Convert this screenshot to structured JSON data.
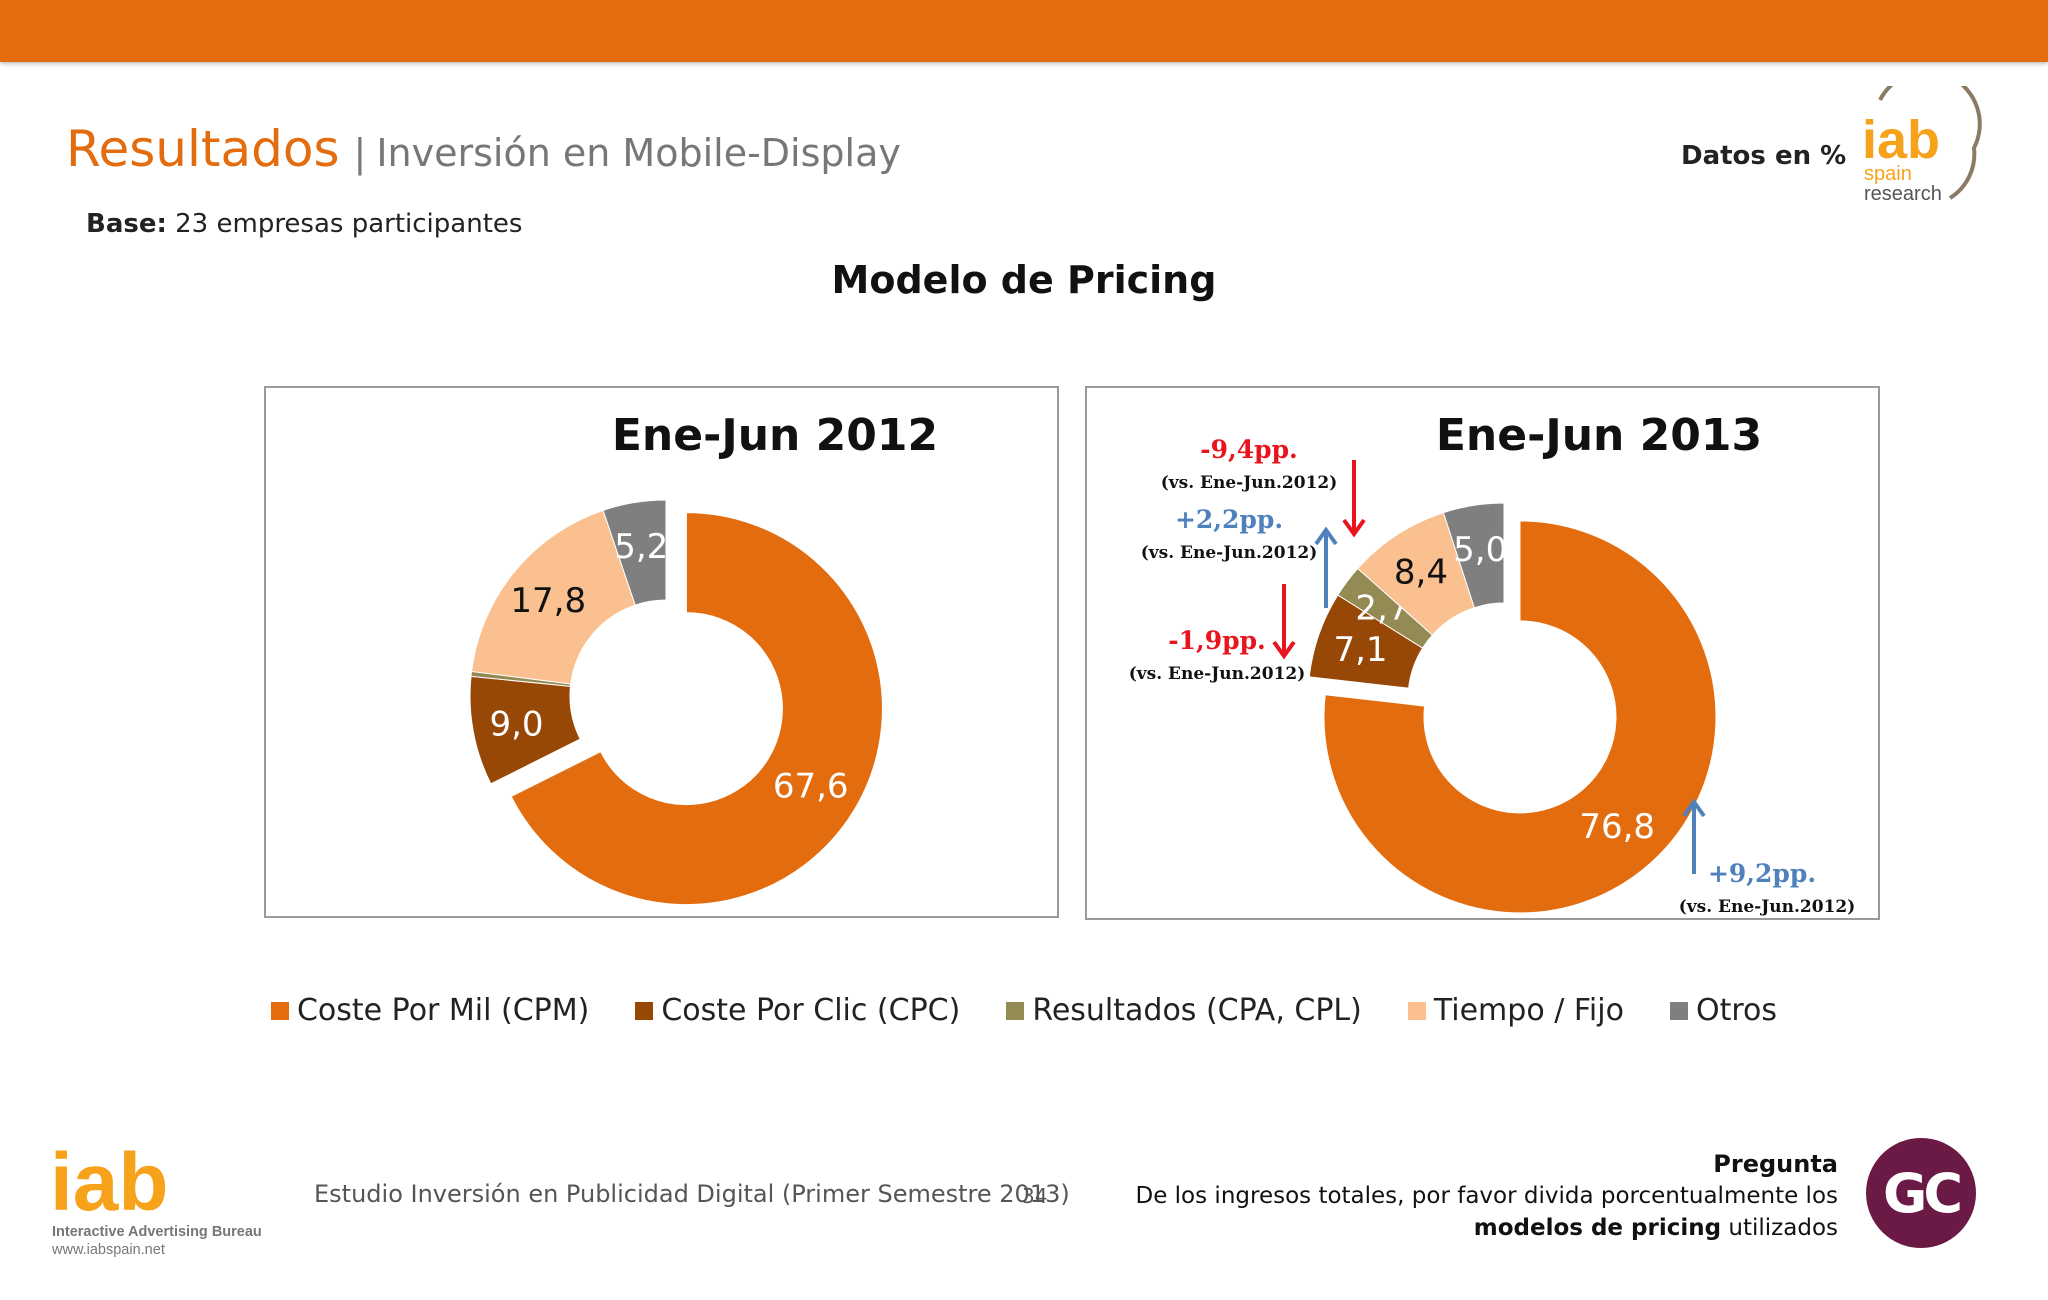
{
  "header": {
    "title_main": "Resultados",
    "separator": "|",
    "title_sub": "Inversión en Mobile-Display",
    "datos": "Datos en %",
    "base_label": "Base:",
    "base_text": "23 empresas participantes",
    "logo_text": "iab",
    "logo_sub1": "spain",
    "logo_sub2": "research"
  },
  "main_title": "Modelo de Pricing",
  "chart_data": [
    {
      "type": "pie",
      "style": "donut",
      "title": "Ene-Jun 2012",
      "categories": [
        "Coste Por Mil (CPM)",
        "Coste Por Clic (CPC)",
        "Resultados (CPA, CPL)",
        "Tiempo / Fijo",
        "Otros"
      ],
      "values": [
        67.6,
        9.0,
        0.4,
        17.8,
        5.2
      ],
      "labels": [
        "67,6",
        "9,0",
        "",
        "17,8",
        "5,2"
      ],
      "colors": [
        "#e36c0f",
        "#974806",
        "#948a54",
        "#fac090",
        "#7f7f7f"
      ]
    },
    {
      "type": "pie",
      "style": "donut",
      "title": "Ene-Jun 2013",
      "categories": [
        "Coste Por Mil (CPM)",
        "Coste Por Clic (CPC)",
        "Resultados (CPA, CPL)",
        "Tiempo / Fijo",
        "Otros"
      ],
      "values": [
        76.8,
        7.1,
        2.7,
        8.4,
        5.0
      ],
      "labels": [
        "76,8",
        "7,1",
        "2,7",
        "8,4",
        "5,0"
      ],
      "colors": [
        "#e36c0f",
        "#974806",
        "#948a54",
        "#fac090",
        "#7f7f7f"
      ],
      "annotations": [
        {
          "text": "-9,4pp.",
          "sub": "(vs.  Ene-Jun.2012)",
          "direction": "down",
          "color": "#e8141e",
          "target": "Tiempo / Fijo"
        },
        {
          "text": "+2,2pp.",
          "sub": "(vs. Ene-Jun.2012)",
          "direction": "up",
          "color": "#4f81bd",
          "target": "Resultados (CPA, CPL)"
        },
        {
          "text": "-1,9pp.",
          "sub": "(vs. Ene-Jun.2012)",
          "direction": "down",
          "color": "#e8141e",
          "target": "Coste Por Clic (CPC)"
        },
        {
          "text": "+9,2pp.",
          "sub": "(vs. Ene-Jun.2012)",
          "direction": "up",
          "color": "#4f81bd",
          "target": "Coste Por Mil (CPM)"
        }
      ]
    }
  ],
  "legend": [
    {
      "label": "Coste Por Mil (CPM)",
      "color": "#e36c0f"
    },
    {
      "label": "Coste Por Clic (CPC)",
      "color": "#974806"
    },
    {
      "label": "Resultados (CPA, CPL)",
      "color": "#948a54"
    },
    {
      "label": "Tiempo / Fijo",
      "color": "#fac090"
    },
    {
      "label": "Otros",
      "color": "#7f7f7f"
    }
  ],
  "footer": {
    "logo_text": "iab",
    "logo_sub": "Interactive Advertising Bureau",
    "logo_url": "www.iabspain.net",
    "study": "Estudio Inversión en Publicidad Digital (Primer Semestre 2013)",
    "page": "34",
    "pregunta_title": "Pregunta",
    "pregunta_line1": "De los ingresos totales, por favor divida porcentualmente los",
    "pregunta_bold": "modelos de pricing",
    "pregunta_end": "utilizados",
    "gc": "GC"
  }
}
